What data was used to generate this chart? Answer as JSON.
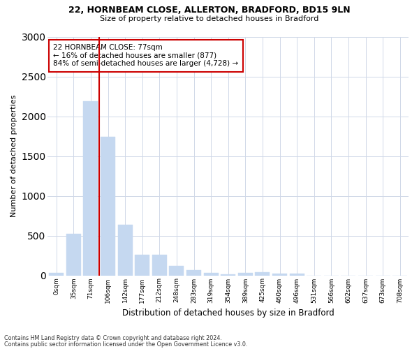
{
  "title1": "22, HORNBEAM CLOSE, ALLERTON, BRADFORD, BD15 9LN",
  "title2": "Size of property relative to detached houses in Bradford",
  "xlabel": "Distribution of detached houses by size in Bradford",
  "ylabel": "Number of detached properties",
  "categories": [
    "0sqm",
    "35sqm",
    "71sqm",
    "106sqm",
    "142sqm",
    "177sqm",
    "212sqm",
    "248sqm",
    "283sqm",
    "319sqm",
    "354sqm",
    "389sqm",
    "425sqm",
    "460sqm",
    "496sqm",
    "531sqm",
    "566sqm",
    "602sqm",
    "637sqm",
    "673sqm",
    "708sqm"
  ],
  "values": [
    30,
    520,
    2190,
    1745,
    635,
    260,
    260,
    115,
    70,
    35,
    15,
    30,
    40,
    25,
    20,
    0,
    0,
    0,
    0,
    0,
    0
  ],
  "bar_color": "#c5d8f0",
  "bar_edge_color": "#c5d8f0",
  "vline_x": 2.5,
  "vline_color": "#cc0000",
  "annotation_text": "22 HORNBEAM CLOSE: 77sqm\n← 16% of detached houses are smaller (877)\n84% of semi-detached houses are larger (4,728) →",
  "annotation_box_facecolor": "#ffffff",
  "annotation_box_edgecolor": "#cc0000",
  "ylim": [
    0,
    3000
  ],
  "yticks": [
    0,
    500,
    1000,
    1500,
    2000,
    2500,
    3000
  ],
  "bg_color": "#ffffff",
  "plot_bg": "#ffffff",
  "grid_color": "#d0d8e8",
  "footer1": "Contains HM Land Registry data © Crown copyright and database right 2024.",
  "footer2": "Contains public sector information licensed under the Open Government Licence v3.0."
}
